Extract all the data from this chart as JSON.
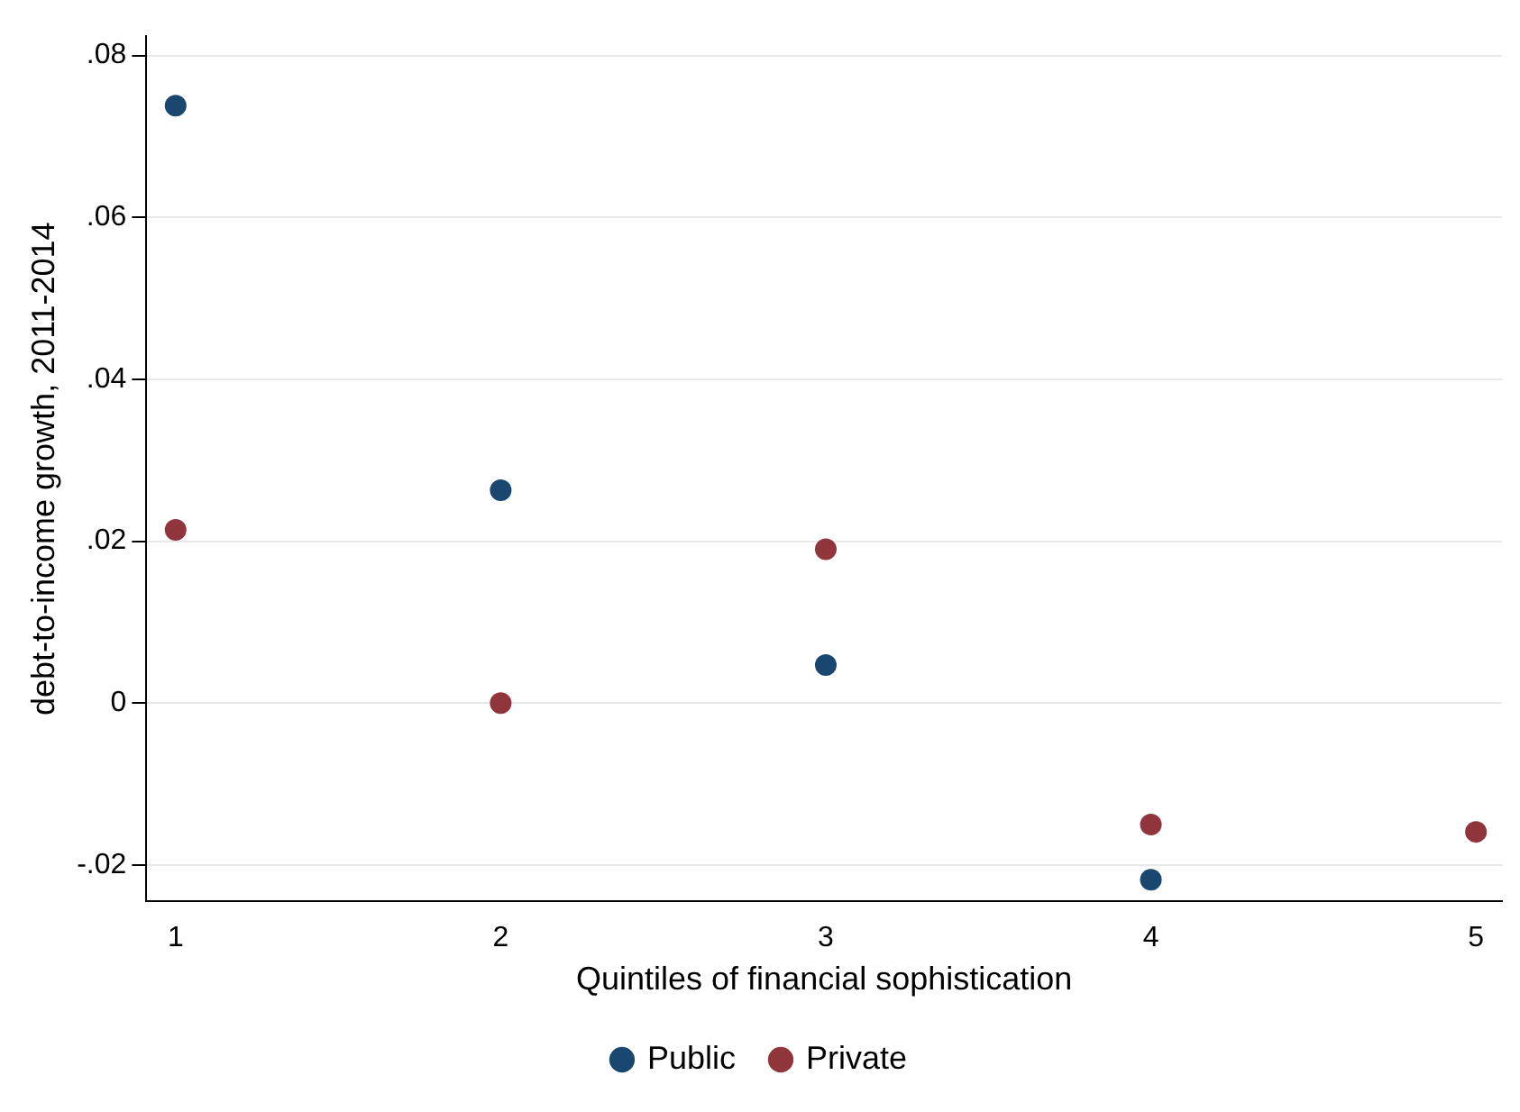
{
  "chart_data": {
    "type": "scatter",
    "xlabel": "Quintiles of financial sophistication",
    "ylabel": "debt-to-income growth, 2011-2014",
    "x": [
      1,
      2,
      3,
      4,
      5
    ],
    "series": [
      {
        "name": "Public",
        "color": "#1a476f",
        "values": [
          0.0738,
          0.0263,
          0.0047,
          -0.0218,
          null
        ]
      },
      {
        "name": "Private",
        "color": "#90353b",
        "values": [
          0.0214,
          0,
          0.019,
          -0.015,
          -0.0159
        ]
      }
    ],
    "xlim": [
      0.91,
      5.08
    ],
    "xticks": [
      1,
      2,
      3,
      4,
      5
    ],
    "ylim": [
      -0.0245,
      0.0824
    ],
    "yticks": [
      {
        "value": -0.02,
        "label": "-.02"
      },
      {
        "value": 0,
        "label": "0"
      },
      {
        "value": 0.02,
        "label": ".02"
      },
      {
        "value": 0.04,
        "label": ".04"
      },
      {
        "value": 0.06,
        "label": ".06"
      },
      {
        "value": 0.08,
        "label": ".08"
      }
    ],
    "grid": "y",
    "legend": "bottom",
    "marker": "circle"
  }
}
